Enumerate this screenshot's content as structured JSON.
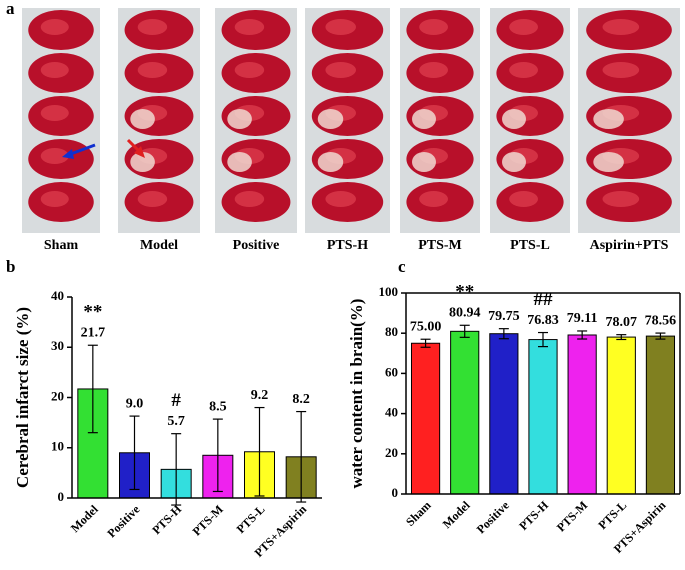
{
  "figure": {
    "panel_label": "a",
    "groups": [
      "Sham",
      "Model",
      "Positive",
      "PTS-H",
      "PTS-M",
      "PTS-L",
      "Aspirin+PTS"
    ]
  },
  "chart_data": [
    {
      "type": "bar",
      "panel_label": "b",
      "ylabel": "Cerebral infarct size (%)",
      "categories": [
        "Model",
        "Positive",
        "PTS-H",
        "PTS-M",
        "PTS-L",
        "PTS+Aspirin"
      ],
      "values": [
        21.7,
        9.0,
        5.7,
        8.5,
        9.2,
        8.2
      ],
      "value_labels": [
        "21.7",
        "9.0",
        "5.7",
        "8.5",
        "9.2",
        "8.2"
      ],
      "errors": [
        8.7,
        7.3,
        7.1,
        7.2,
        8.8,
        9.0
      ],
      "colors": [
        "#33e033",
        "#2020c8",
        "#33dede",
        "#ee22ee",
        "#ffff22",
        "#808020"
      ],
      "annotations": [
        {
          "text": "**",
          "category": "Model"
        },
        {
          "text": "#",
          "category": "PTS-H"
        }
      ],
      "ylim": [
        0,
        40
      ],
      "yticks": [
        0,
        10,
        20,
        30,
        40
      ],
      "box": false
    },
    {
      "type": "bar",
      "panel_label": "c",
      "ylabel": "water content in brain(%)",
      "categories": [
        "Sham",
        "Model",
        "Positive",
        "PTS-H",
        "PTS-M",
        "PTS-L",
        "PTS+Aspirin"
      ],
      "values": [
        75.0,
        80.94,
        79.75,
        76.83,
        79.11,
        78.07,
        78.56
      ],
      "value_labels": [
        "75.00",
        "80.94",
        "79.75",
        "76.83",
        "79.11",
        "78.07",
        "78.56"
      ],
      "errors": [
        2.0,
        3.0,
        2.5,
        3.5,
        2.0,
        1.2,
        1.5
      ],
      "colors": [
        "#ff2020",
        "#33e033",
        "#2020c8",
        "#33dede",
        "#ee22ee",
        "#ffff22",
        "#808020"
      ],
      "annotations": [
        {
          "text": "**",
          "category": "Model"
        },
        {
          "text": "##",
          "category": "PTS-H"
        }
      ],
      "ylim": [
        0,
        100
      ],
      "yticks": [
        0,
        20,
        40,
        60,
        80,
        100
      ],
      "box": true
    }
  ]
}
